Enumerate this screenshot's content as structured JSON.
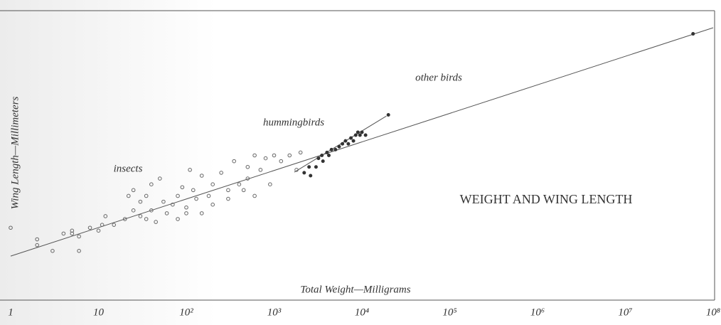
{
  "chart_data": {
    "type": "scatter",
    "title": "WEIGHT AND WING LENGTH",
    "x_label": "Total Weight—Milligrams",
    "y_label": "Wing Length—Millimeters",
    "annotations": [
      "insects",
      "hummingbirds",
      "other birds"
    ],
    "log_x": true,
    "xlim": [
      1,
      100000000
    ],
    "xticks": [
      1,
      10,
      {
        "value": 100,
        "label": "10²"
      },
      {
        "value": 1000,
        "label": "10³"
      },
      {
        "value": 10000,
        "label": "10⁴"
      },
      {
        "value": 100000,
        "label": "10⁵"
      },
      {
        "value": 1000000,
        "label": "10⁶"
      },
      {
        "value": 10000000,
        "label": "10⁷"
      },
      {
        "value": 100000000,
        "label": "10⁸"
      }
    ],
    "ylim": [
      0,
      100
    ],
    "series": [
      {
        "marker": "open",
        "color": "#666666",
        "x": [
          1,
          2,
          2,
          3,
          4,
          5,
          5,
          6,
          6,
          8,
          10,
          11,
          12,
          15,
          20,
          22,
          25,
          25,
          30,
          30,
          35,
          35,
          40,
          40,
          45,
          50,
          55,
          60,
          70,
          80,
          80,
          90,
          100,
          100,
          110,
          120,
          130,
          150,
          150,
          180,
          200,
          200,
          250,
          300,
          300,
          350,
          400,
          450,
          500,
          500,
          600,
          600,
          700,
          800,
          900,
          1000,
          1200,
          1500,
          2000,
          1800
        ],
        "values": [
          25,
          19,
          21,
          17,
          23,
          24,
          23,
          22,
          17,
          25,
          24,
          26,
          29,
          26,
          28,
          36,
          38,
          31,
          29,
          34,
          36,
          28,
          40,
          31,
          27,
          42,
          34,
          30,
          33,
          28,
          36,
          39,
          32,
          30,
          45,
          38,
          35,
          30,
          43,
          36,
          40,
          33,
          44,
          38,
          35,
          48,
          40,
          38,
          46,
          42,
          50,
          36,
          45,
          49,
          40,
          50,
          48,
          50,
          51,
          45
        ]
      },
      {
        "marker": "filled",
        "color": "#333333",
        "x": [
          2200,
          2500,
          2600,
          3000,
          3200,
          3500,
          3600,
          4000,
          4200,
          4500,
          5000,
          5500,
          6000,
          6500,
          7000,
          7500,
          8000,
          8500,
          9000,
          9500,
          10000,
          11000,
          20000
        ],
        "values": [
          44,
          46,
          43,
          46,
          49,
          50,
          48,
          51,
          50,
          52,
          52,
          53,
          54,
          55,
          54,
          56,
          55,
          57,
          58,
          57,
          58,
          57,
          64
        ]
      },
      {
        "marker": "filled",
        "color": "#333333",
        "x": [
          59000000
        ],
        "values": [
          92
        ]
      }
    ],
    "fit_lines": [
      {
        "color": "#555555",
        "x": [
          1,
          100000000
        ],
        "values": [
          15.2,
          94.1
        ]
      },
      {
        "color": "#555555",
        "x": [
          1700,
          19000
        ],
        "values": [
          44.2,
          63.6
        ]
      }
    ]
  }
}
